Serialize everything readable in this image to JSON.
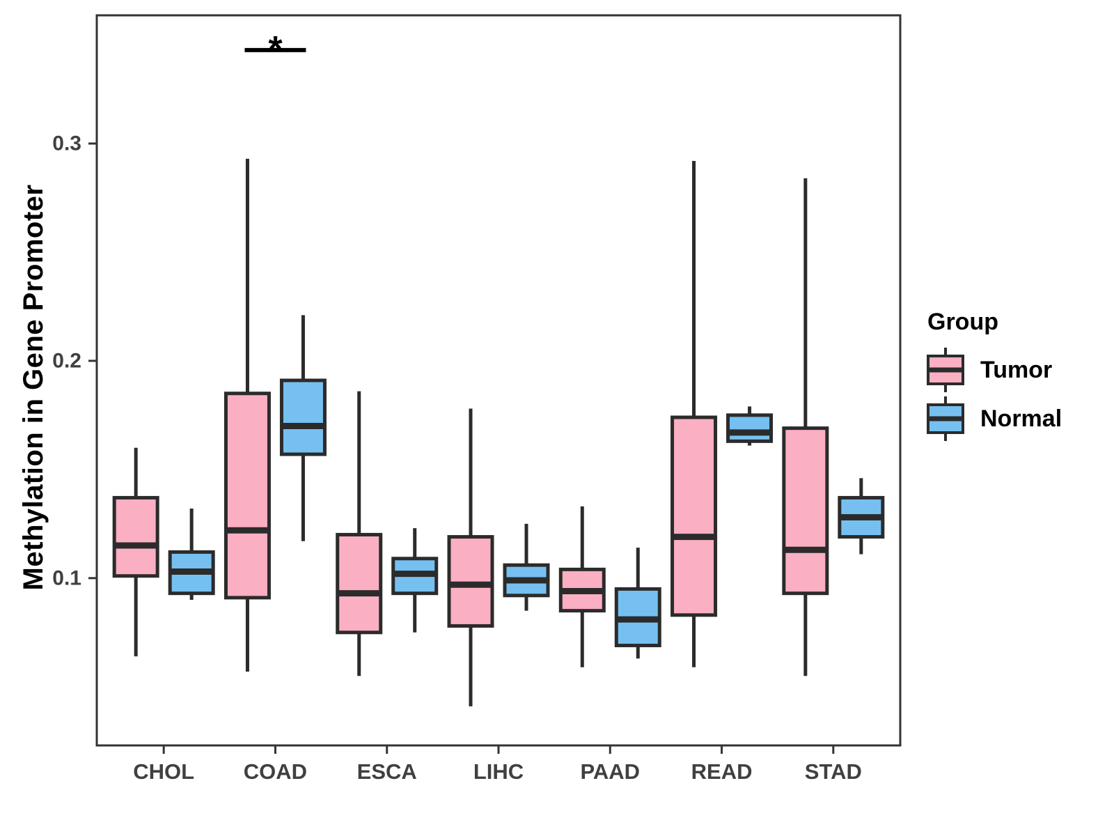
{
  "chart_data": {
    "type": "box",
    "title": "",
    "xlabel": "",
    "ylabel": "Methylation in Gene Promoter",
    "legend_title": "Group",
    "legend_position": "right",
    "grid": "off",
    "categories": [
      "CHOL",
      "COAD",
      "ESCA",
      "LIHC",
      "PAAD",
      "READ",
      "STAD"
    ],
    "groups": [
      {
        "name": "Tumor",
        "color": "#FBAFC2"
      },
      {
        "name": "Normal",
        "color": "#76C0F1"
      }
    ],
    "ylim": [
      0.023,
      0.359
    ],
    "yticks": [
      0.1,
      0.2,
      0.3
    ],
    "ytick_labels": [
      "0.1",
      "0.2",
      "0.3"
    ],
    "series": [
      {
        "name": "Tumor",
        "boxes": [
          {
            "category": "CHOL",
            "whisker_low": 0.064,
            "q1": 0.101,
            "median": 0.115,
            "q3": 0.137,
            "whisker_high": 0.16
          },
          {
            "category": "COAD",
            "whisker_low": 0.057,
            "q1": 0.091,
            "median": 0.122,
            "q3": 0.185,
            "whisker_high": 0.293
          },
          {
            "category": "ESCA",
            "whisker_low": 0.055,
            "q1": 0.075,
            "median": 0.093,
            "q3": 0.12,
            "whisker_high": 0.186
          },
          {
            "category": "LIHC",
            "whisker_low": 0.041,
            "q1": 0.078,
            "median": 0.097,
            "q3": 0.119,
            "whisker_high": 0.178
          },
          {
            "category": "PAAD",
            "whisker_low": 0.059,
            "q1": 0.085,
            "median": 0.094,
            "q3": 0.104,
            "whisker_high": 0.133
          },
          {
            "category": "READ",
            "whisker_low": 0.059,
            "q1": 0.083,
            "median": 0.119,
            "q3": 0.174,
            "whisker_high": 0.292
          },
          {
            "category": "STAD",
            "whisker_low": 0.055,
            "q1": 0.093,
            "median": 0.113,
            "q3": 0.169,
            "whisker_high": 0.284
          }
        ]
      },
      {
        "name": "Normal",
        "boxes": [
          {
            "category": "CHOL",
            "whisker_low": 0.09,
            "q1": 0.093,
            "median": 0.103,
            "q3": 0.112,
            "whisker_high": 0.132
          },
          {
            "category": "COAD",
            "whisker_low": 0.117,
            "q1": 0.157,
            "median": 0.17,
            "q3": 0.191,
            "whisker_high": 0.221
          },
          {
            "category": "ESCA",
            "whisker_low": 0.075,
            "q1": 0.093,
            "median": 0.102,
            "q3": 0.109,
            "whisker_high": 0.123
          },
          {
            "category": "LIHC",
            "whisker_low": 0.085,
            "q1": 0.092,
            "median": 0.099,
            "q3": 0.106,
            "whisker_high": 0.125
          },
          {
            "category": "PAAD",
            "whisker_low": 0.063,
            "q1": 0.069,
            "median": 0.081,
            "q3": 0.095,
            "whisker_high": 0.114
          },
          {
            "category": "READ",
            "whisker_low": 0.161,
            "q1": 0.163,
            "median": 0.167,
            "q3": 0.175,
            "whisker_high": 0.179
          },
          {
            "category": "STAD",
            "whisker_low": 0.111,
            "q1": 0.119,
            "median": 0.128,
            "q3": 0.137,
            "whisker_high": 0.146
          }
        ]
      }
    ],
    "annotation": {
      "label": "*",
      "category": "COAD",
      "bar_y_value": 0.343
    },
    "colors": {
      "box_stroke": "#2B2B2B",
      "axis_line": "#333333",
      "axis_text": "#404040",
      "annotation": "#000000"
    }
  }
}
